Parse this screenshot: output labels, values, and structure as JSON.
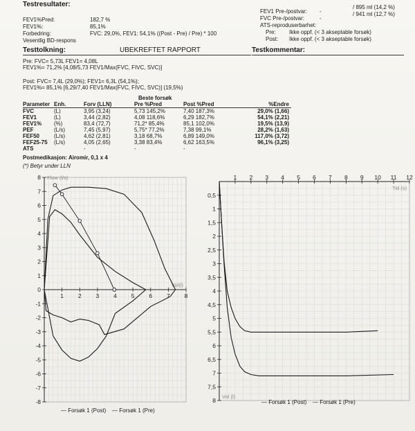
{
  "header": {
    "title": "Testresultater:",
    "fev1_pct_pred_label": "FEV1%Pred:",
    "fev1_pct_pred_value": "182,7 %",
    "fev1_pct_label": "FEV1%:",
    "fev1_pct_value": "85,1%",
    "improvement_label": "Forbedring:",
    "improvement_value": "FVC: 29,0%, FEV1: 54,1% ((Post - Pre) / Pre) * 100",
    "bd_response_label": "Vesentlig BD-respons",
    "fev1_prepost_label": "FEV1 Pre-/postvar:",
    "fev1_prepost_value": "/ 895 ml (14,2 %)",
    "fvc_prepost_label": "FVC Pre-/postvar:",
    "fvc_prepost_value": "/ 941 ml (12,7 %)",
    "dash1": "-",
    "dash2": "-",
    "ats_label": "ATS-reproduserbarhet:",
    "ats_pre_label": "Pre:",
    "ats_pre_value": "Ikke oppf. (< 3 akseptable forsøk)",
    "ats_post_label": "Post:",
    "ats_post_value": "Ikke oppf. (< 3 akseptable forsøk)"
  },
  "interpretation": {
    "heading": "Testtolkning:",
    "report_title": "UBEKREFTET RAPPORT",
    "comment_heading": "Testkommentar:",
    "pre_line1": "Pre: FVC= 5,73L FEV1= 4,08L",
    "pre_line2": "FEV1%= 71,2% [4,08/5,73 FEV1/Max(FVC, FIVC, SVC)]",
    "post_line1": "Post: FVC= 7,4L (29,0%); FEV1= 6,3L (54,1%);",
    "post_line2": "FEV1%= 85,1% [6,29/7,40 FEV1/Max(FVC, FIVC, SVC)] (19,5%)"
  },
  "table": {
    "best_label": "Beste forsøk",
    "headers": [
      "Parameter",
      "Enh.",
      "Forv (LLN)",
      "Pre  %Pred",
      "Post  %Pred",
      "%Endre"
    ],
    "rows": [
      [
        "FVC",
        "(L)",
        "3,95 (3,24)",
        "5,73 145,2%",
        "7,40 187,3%",
        "29,0% (1,66)"
      ],
      [
        "FEV1",
        "(L)",
        "3,44 (2,82)",
        "4,08 118,6%",
        "6,29 182,7%",
        "54,1% (2,21)"
      ],
      [
        "FEV1%",
        "(%)",
        "83,4 (72,7)",
        "71,2*  85,4%",
        "85,1 102,0%",
        "19,5% (13,9)"
      ],
      [
        "PEF",
        "(L/s)",
        "7,45 (5,97)",
        "5,75*  77,2%",
        "7,38  99,1%",
        "28,2% (1,63)"
      ],
      [
        "FEF50",
        "(L/s)",
        "4,62 (2,81)",
        "3,18  68,7%",
        "6,89 149,0%",
        "117,0% (3,72)"
      ],
      [
        "FEF25-75",
        "(L/s)",
        "4,05 (2,65)",
        "3,38  83,4%",
        "6,62 163,5%",
        "96,1% (3,25)"
      ],
      [
        "ATS",
        "",
        "-",
        "-",
        "-",
        ""
      ]
    ],
    "medication": "Postmedikasjon: Airomir, 0,1 x 4",
    "footnote": "(*) Betyr under LLN"
  },
  "chart_data": [
    {
      "type": "line",
      "title": "",
      "xlabel": "Vol(l)",
      "ylabel": "Flow (l/s)",
      "xlim": [
        0,
        8
      ],
      "ylim": [
        -8,
        8
      ],
      "x_ticks": [
        "1",
        "2",
        "3",
        "4",
        "5",
        "6",
        "7",
        "8"
      ],
      "y_ticks": [
        "8",
        "7",
        "6",
        "5",
        "4",
        "3",
        "2",
        "1",
        "0",
        "-1",
        "-2",
        "-3",
        "-4",
        "-5",
        "-6",
        "-7",
        "-8"
      ],
      "series": [
        {
          "name": "Forsøk 1 (Post)",
          "x": [
            0,
            0.2,
            0.5,
            1.0,
            1.5,
            2.5,
            3.5,
            4.5,
            5.5,
            6.2,
            6.8,
            7.4,
            7.1,
            6.0,
            4.5,
            3.4,
            3.1,
            2.5,
            2.0,
            1.5,
            1.0,
            0.5,
            0.1,
            0
          ],
          "y": [
            0,
            5.0,
            6.7,
            7.1,
            7.3,
            7.3,
            7.2,
            6.8,
            5.5,
            3.5,
            1.5,
            0,
            -0.5,
            -1.2,
            -2.8,
            -3.2,
            -2.5,
            -2.2,
            -2.1,
            -2.3,
            -2.0,
            -1.8,
            -1.5,
            0
          ]
        },
        {
          "name": "Forsøk 1 (Pre)",
          "x": [
            0,
            0.3,
            0.6,
            1.0,
            1.5,
            2.0,
            3.0,
            4.0,
            5.0,
            5.73,
            5.0,
            4.0,
            3.5,
            3.0,
            2.5,
            2.0,
            1.5,
            1.0,
            0.5,
            0
          ],
          "y": [
            0,
            5.2,
            5.7,
            5.4,
            4.8,
            3.9,
            2.3,
            1.3,
            0.5,
            0,
            -0.8,
            -1.7,
            -3.3,
            -4.2,
            -4.8,
            -5.1,
            -4.9,
            -4.3,
            -3.3,
            0
          ]
        }
      ]
    },
    {
      "type": "line",
      "title": "",
      "xlabel": "Tid (s)",
      "ylabel": "Vol (l)",
      "xlim": [
        0,
        12
      ],
      "ylim": [
        0,
        8
      ],
      "y_inverted": true,
      "x_ticks": [
        "1",
        "2",
        "3",
        "4",
        "5",
        "6",
        "7",
        "8",
        "9",
        "10",
        "11",
        "12"
      ],
      "y_ticks": [
        "0,5",
        "1",
        "1,5",
        "2",
        "2,5",
        "3",
        "3,5",
        "4",
        "4,5",
        "5",
        "5,5",
        "6",
        "6,5",
        "7",
        "7,5",
        "8"
      ],
      "series": [
        {
          "name": "Forsøk 1 (Post)",
          "x": [
            0,
            0.15,
            0.3,
            0.5,
            0.75,
            1.0,
            1.3,
            1.6,
            2.0,
            2.5,
            3.0,
            5.0,
            8.0,
            11.0
          ],
          "y": [
            0,
            1.5,
            3.0,
            4.6,
            5.7,
            6.3,
            6.75,
            6.95,
            7.05,
            7.1,
            7.1,
            7.1,
            7.1,
            7.05
          ]
        },
        {
          "name": "Forsøk 1 (Pre)",
          "x": [
            0,
            0.15,
            0.3,
            0.5,
            0.75,
            1.0,
            1.3,
            1.6,
            2.0,
            2.5,
            3.0,
            5.0,
            8.0,
            10.0
          ],
          "y": [
            0,
            1.5,
            2.9,
            4.0,
            4.6,
            5.0,
            5.3,
            5.45,
            5.5,
            5.5,
            5.5,
            5.5,
            5.5,
            5.45
          ]
        }
      ]
    }
  ],
  "legend": {
    "post": "— Forsøk 1 (Post)",
    "pre": "— Forsøk 1 (Pre)"
  }
}
